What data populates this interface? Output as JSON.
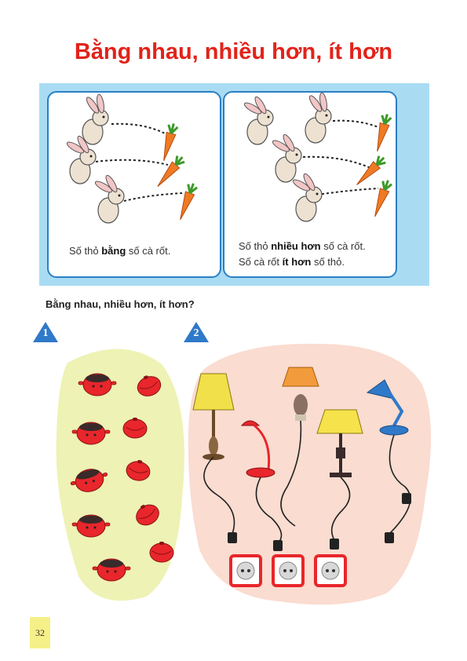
{
  "title": "Bằng nhau, nhiều hơn, ít hơn",
  "panels": [
    {
      "line1": {
        "a": "Số thỏ ",
        "b": "bằng",
        "c": " số cà rốt."
      }
    },
    {
      "line1": {
        "a": "Số thỏ ",
        "b": "nhiều hơn",
        "c": " số cà rốt."
      },
      "line2": {
        "a": "Số cà rốt ",
        "b": "ít hơn",
        "c": " số thỏ."
      }
    }
  ],
  "question": "Bằng nhau, nhiều hơn, ít hơn?",
  "exercises": [
    "1",
    "2"
  ],
  "page_number": "32",
  "colors": {
    "title": "#e2231a",
    "panel_border": "#2a7fc4",
    "box_bg": "#a9dcf3",
    "yellow_blob": "#eef2b4",
    "pink_blob": "#fadcd0",
    "pot": "#e8262b"
  }
}
